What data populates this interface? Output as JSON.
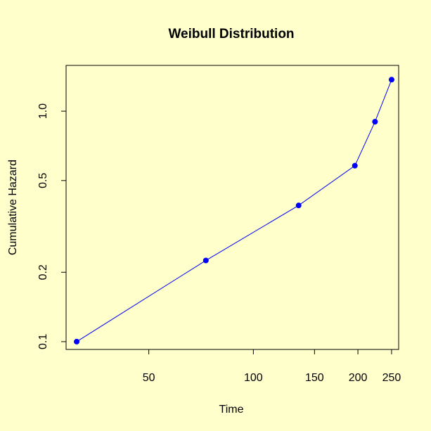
{
  "chart_data": {
    "type": "line",
    "title": "Weibull Distribution",
    "xlabel": "Time",
    "ylabel": "Cumulative Hazard",
    "x_scale": "log",
    "y_scale": "log",
    "xlim": [
      28.9,
      262
    ],
    "ylim": [
      0.0925,
      1.58
    ],
    "x_ticks": [
      50,
      100,
      150,
      200,
      250
    ],
    "x_tick_labels": [
      "50",
      "100",
      "150",
      "200",
      "250"
    ],
    "y_ticks": [
      0.1,
      0.2,
      0.5,
      1.0
    ],
    "y_tick_labels": [
      "0.1",
      "0.2",
      "0.5",
      "1.0"
    ],
    "grid": false,
    "legend": "none",
    "series": [
      {
        "x": [
          31,
          73,
          135,
          196,
          224,
          250
        ],
        "y": [
          0.1,
          0.225,
          0.39,
          0.58,
          0.9,
          1.37
        ],
        "color": "#0000ff",
        "marker": "filled-circle"
      }
    ]
  },
  "colors": {
    "background": "#ffffcc",
    "series": "#0000ff",
    "axis": "#000000"
  }
}
